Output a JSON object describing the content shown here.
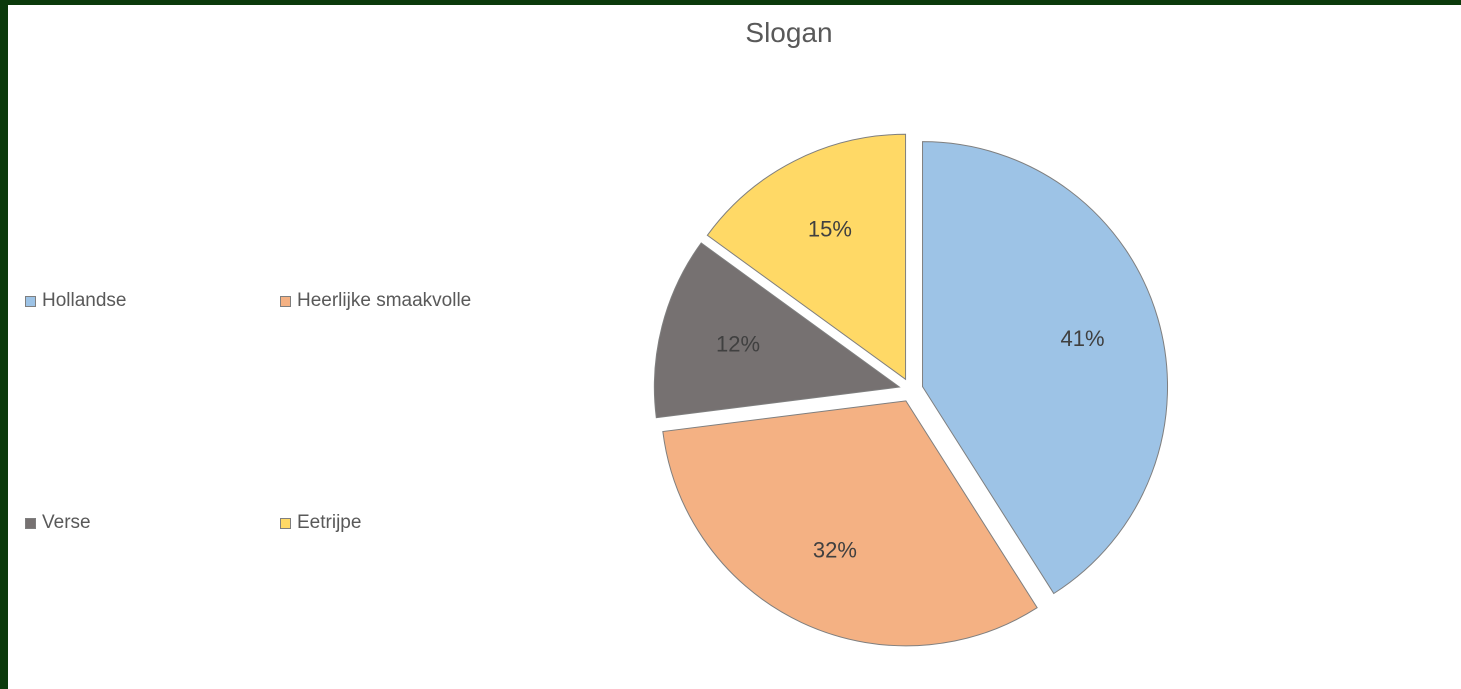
{
  "chart_data": {
    "type": "pie",
    "title": "Slogan",
    "categories": [
      "Hollandse",
      "Heerlijke smaakvolle",
      "Verse",
      "Eetrijpe"
    ],
    "values": [
      41,
      32,
      12,
      15
    ],
    "labels": [
      "41%",
      "32%",
      "12%",
      "15%"
    ],
    "colors": [
      "#9dc3e6",
      "#f4b183",
      "#767171",
      "#ffd966"
    ],
    "exploded": true,
    "legend_position": "left"
  }
}
